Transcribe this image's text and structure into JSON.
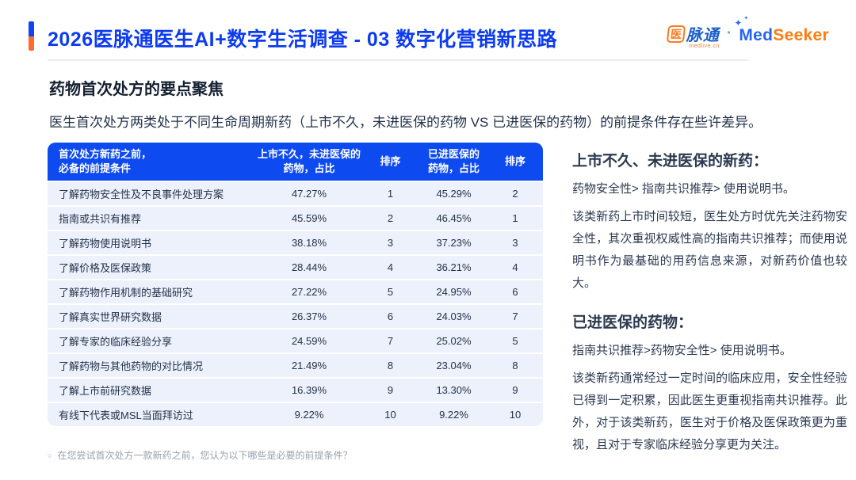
{
  "header": {
    "title": "2026医脉通医生AI+数字生活调查 - 03 数字化营销新思路"
  },
  "logo": {
    "medlive_char": "医",
    "medlive_rest": "脉通",
    "medlive_domain": "medlive.cn",
    "separator": "·",
    "sparkle_large": "✦",
    "sparkle_small": "✦",
    "medseeker_med": "Med",
    "medseeker_seeker": "Seeker"
  },
  "section": {
    "title": "药物首次处方的要点聚焦",
    "subtitle": "医生首次处方两类处于不同生命周期新药（上市不久，未进医保的药物 VS 已进医保的药物）的前提条件存在些许差异。"
  },
  "table": {
    "header": {
      "condition_line1": "首次处方新药之前，",
      "condition_line2": "必备的前提条件",
      "new_line1": "上市不久，未进医保的",
      "new_line2": "药物，占比",
      "rank1": "排序",
      "insured_line1": "已进医保的",
      "insured_line2": "药物，占比",
      "rank2": "排序"
    },
    "rows": [
      {
        "label": "了解药物安全性及不良事件处理方案",
        "new_pct": "47.27%",
        "new_rank": "1",
        "insured_pct": "45.29%",
        "insured_rank": "2"
      },
      {
        "label": "指南或共识有推荐",
        "new_pct": "45.59%",
        "new_rank": "2",
        "insured_pct": "46.45%",
        "insured_rank": "1"
      },
      {
        "label": "了解药物使用说明书",
        "new_pct": "38.18%",
        "new_rank": "3",
        "insured_pct": "37.23%",
        "insured_rank": "3"
      },
      {
        "label": "了解价格及医保政策",
        "new_pct": "28.44%",
        "new_rank": "4",
        "insured_pct": "36.21%",
        "insured_rank": "4"
      },
      {
        "label": "了解药物作用机制的基础研究",
        "new_pct": "27.22%",
        "new_rank": "5",
        "insured_pct": "24.95%",
        "insured_rank": "6"
      },
      {
        "label": "了解真实世界研究数据",
        "new_pct": "26.37%",
        "new_rank": "6",
        "insured_pct": "24.03%",
        "insured_rank": "7"
      },
      {
        "label": "了解专家的临床经验分享",
        "new_pct": "24.59%",
        "new_rank": "7",
        "insured_pct": "25.02%",
        "insured_rank": "5"
      },
      {
        "label": "了解药物与其他药物的对比情况",
        "new_pct": "21.49%",
        "new_rank": "8",
        "insured_pct": "23.04%",
        "insured_rank": "8"
      },
      {
        "label": "了解上市前研究数据",
        "new_pct": "16.39%",
        "new_rank": "9",
        "insured_pct": "13.30%",
        "insured_rank": "9"
      },
      {
        "label": "有线下代表或MSL当面拜访过",
        "new_pct": "9.22%",
        "new_rank": "10",
        "insured_pct": "9.22%",
        "insured_rank": "10"
      }
    ]
  },
  "insights": {
    "new_drug": {
      "heading": "上市不久、未进医保的新药：",
      "ranking": "药物安全性> 指南共识推荐> 使用说明书。",
      "detail": "该类新药上市时间较短，医生处方时优先关注药物安全性，其次重视权威性高的指南共识推荐；而使用说明书作为最基础的用药信息来源，对新药价值也较大。"
    },
    "insured_drug": {
      "heading": "已进医保的药物：",
      "ranking": "指南共识推荐>药物安全性> 使用说明书。",
      "detail": "该类新药通常经过一定时间的临床应用，安全性经验已得到一定积累，因此医生更重视指南共识推荐。此外，对于该类新药，医生对于价格及医保政策更为重视，且对于专家临床经验分享更为关注。"
    }
  },
  "footnote": {
    "bullet": "○",
    "text": "在您尝试首次处方一款新药之前，您认为以下哪些是必要的前提条件？"
  },
  "colors": {
    "title_blue": "#0d3bf0",
    "table_header_blue": "#0d4af0",
    "row_background": "#ecf1fb",
    "accent_orange": "#ff6a2e",
    "medseeker_orange": "#ff7d12",
    "medlive_blue": "#1b5ecc",
    "body_text": "#2c3a52",
    "footnote_gray": "#98a0ab"
  },
  "chart_data": {
    "type": "table",
    "title": "药物首次处方的要点聚焦",
    "columns": [
      "首次处方新药之前，必备的前提条件",
      "上市不久，未进医保的药物，占比",
      "排序",
      "已进医保的药物，占比",
      "排序"
    ],
    "rows": [
      [
        "了解药物安全性及不良事件处理方案",
        "47.27%",
        1,
        "45.29%",
        2
      ],
      [
        "指南或共识有推荐",
        "45.59%",
        2,
        "46.45%",
        1
      ],
      [
        "了解药物使用说明书",
        "38.18%",
        3,
        "37.23%",
        3
      ],
      [
        "了解价格及医保政策",
        "28.44%",
        4,
        "36.21%",
        4
      ],
      [
        "了解药物作用机制的基础研究",
        "27.22%",
        5,
        "24.95%",
        6
      ],
      [
        "了解真实世界研究数据",
        "26.37%",
        6,
        "24.03%",
        7
      ],
      [
        "了解专家的临床经验分享",
        "24.59%",
        7,
        "25.02%",
        5
      ],
      [
        "了解药物与其他药物的对比情况",
        "21.49%",
        8,
        "23.04%",
        8
      ],
      [
        "了解上市前研究数据",
        "16.39%",
        9,
        "13.30%",
        9
      ],
      [
        "有线下代表或MSL当面拜访过",
        "9.22%",
        10,
        "9.22%",
        10
      ]
    ]
  }
}
